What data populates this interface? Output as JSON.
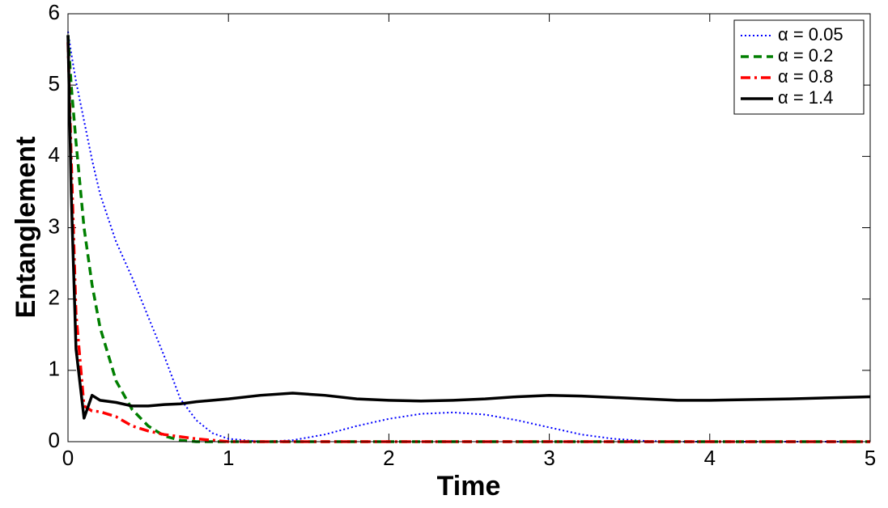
{
  "chart_data": {
    "type": "line",
    "x_label": "Time",
    "y_label": "Entanglement",
    "x": [
      0,
      0.02,
      0.05,
      0.1,
      0.15,
      0.2,
      0.3,
      0.4,
      0.5,
      0.6,
      0.7,
      0.8,
      0.9,
      1.0,
      1.2,
      1.4,
      1.6,
      1.8,
      2.0,
      2.2,
      2.4,
      2.6,
      2.8,
      3.0,
      3.2,
      3.4,
      3.6,
      3.8,
      4.0,
      4.5,
      5.0
    ],
    "series": [
      {
        "name": "α = 0.05",
        "color": "#0000ff",
        "line_style": "dotted",
        "line_width": 2,
        "values": [
          5.75,
          5.45,
          5.05,
          4.5,
          3.95,
          3.47,
          2.8,
          2.3,
          1.75,
          1.2,
          0.6,
          0.3,
          0.12,
          0.04,
          0,
          0.02,
          0.1,
          0.22,
          0.32,
          0.39,
          0.41,
          0.38,
          0.3,
          0.2,
          0.1,
          0.04,
          0.01,
          0,
          0,
          0,
          0
        ]
      },
      {
        "name": "α = 0.2",
        "color": "#007f00",
        "line_style": "dashed",
        "line_width": 3.5,
        "values": [
          5.7,
          5.0,
          4.2,
          3.0,
          2.2,
          1.6,
          0.85,
          0.45,
          0.22,
          0.08,
          0.02,
          0,
          0,
          0,
          0,
          0,
          0,
          0,
          0,
          0,
          0,
          0,
          0,
          0,
          0,
          0,
          0,
          0,
          0,
          0,
          0
        ]
      },
      {
        "name": "α = 0.8",
        "color": "#ff0000",
        "line_style": "dashdot",
        "line_width": 3.5,
        "values": [
          5.6,
          4.0,
          1.8,
          0.5,
          0.43,
          0.42,
          0.35,
          0.22,
          0.15,
          0.1,
          0.07,
          0.04,
          0.02,
          0,
          0,
          0,
          0,
          0,
          0,
          0,
          0,
          0,
          0,
          0,
          0,
          0,
          0,
          0,
          0,
          0,
          0
        ]
      },
      {
        "name": "α = 1.4",
        "color": "#000000",
        "line_style": "solid",
        "line_width": 3.5,
        "values": [
          5.7,
          3.5,
          1.3,
          0.33,
          0.65,
          0.58,
          0.55,
          0.5,
          0.5,
          0.52,
          0.53,
          0.56,
          0.58,
          0.6,
          0.65,
          0.68,
          0.65,
          0.6,
          0.58,
          0.57,
          0.58,
          0.6,
          0.63,
          0.65,
          0.64,
          0.62,
          0.6,
          0.58,
          0.58,
          0.6,
          0.63
        ]
      }
    ],
    "xlim": [
      0,
      5
    ],
    "ylim": [
      0,
      6
    ],
    "xticks": [
      0,
      1,
      2,
      3,
      4,
      5
    ],
    "yticks": [
      0,
      1,
      2,
      3,
      4,
      5,
      6
    ],
    "grid": false,
    "legend": "upper right"
  }
}
